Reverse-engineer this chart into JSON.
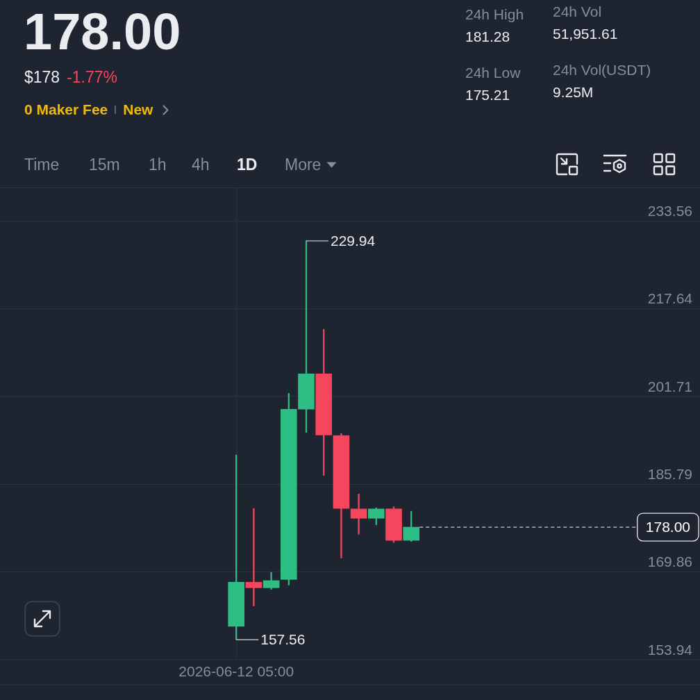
{
  "chart_data": {
    "type": "candlestick",
    "title": "178.00",
    "categories": [
      null,
      null,
      null,
      null,
      null,
      null,
      null,
      null,
      null,
      null,
      null,
      null,
      null,
      "2026-06-12 05:00",
      null,
      null,
      null,
      null,
      null,
      null,
      null,
      null,
      null,
      null,
      null,
      null,
      null,
      null,
      null,
      null,
      null,
      null,
      null,
      null,
      null,
      null,
      null,
      null,
      null,
      null
    ],
    "ohlc": [
      null,
      null,
      null,
      null,
      null,
      null,
      null,
      null,
      null,
      null,
      null,
      null,
      null,
      [
        160.0,
        191.1,
        157.56,
        168.0
      ],
      [
        168.0,
        181.4,
        163.7,
        167.0
      ],
      [
        167.0,
        169.8,
        166.7,
        168.3
      ],
      [
        168.5,
        202.3,
        167.5,
        199.4
      ],
      [
        199.4,
        229.94,
        195.2,
        205.8
      ],
      [
        205.8,
        213.9,
        187.4,
        194.7
      ],
      [
        194.6,
        195.0,
        172.4,
        181.4
      ],
      [
        181.3,
        184.0,
        176.7,
        179.6
      ],
      [
        179.6,
        181.5,
        178.4,
        181.3
      ],
      [
        181.3,
        181.7,
        175.2,
        175.6
      ],
      [
        175.6,
        180.9,
        175.4,
        178.0
      ],
      null,
      null,
      null,
      null,
      null,
      null,
      null,
      null,
      null,
      null,
      null,
      null,
      null,
      null,
      null,
      null
    ],
    "colors": [
      null,
      null,
      null,
      null,
      null,
      null,
      null,
      null,
      null,
      null,
      null,
      null,
      null,
      "#2ebd85",
      "#f6465d",
      "#2ebd85",
      "#2ebd85",
      "#2ebd85",
      "#f6465d",
      "#f6465d",
      "#f6465d",
      "#2ebd85",
      "#f6465d",
      "#2ebd85",
      null,
      null,
      null,
      null,
      null,
      null,
      null,
      null,
      null,
      null,
      null,
      null,
      null,
      null,
      null,
      null
    ],
    "ylim": [
      153.94,
      239.5
    ],
    "yticks": [
      153.94,
      169.86,
      185.79,
      201.71,
      217.64,
      233.56
    ],
    "grid": true,
    "ref_lines": [
      {
        "axis": "y",
        "value": 178.0,
        "label": "178.00",
        "line_style": "dashed",
        "color": "#c9cdd3"
      }
    ],
    "annotations": [
      "229.94",
      {
        "text": "157.56",
        "x": "2026-06-12 05:00",
        "y": 157.56
      },
      "$178",
      "-1.77%",
      "0 Maker Fee",
      "New",
      "24h High",
      "181.28",
      "24h Low",
      "175.21",
      "24h Vol",
      "51,951.61",
      "24h Vol(USDT)",
      "9.25M",
      "Time",
      "15m",
      "1h",
      "4h",
      "1D",
      "More"
    ]
  }
}
